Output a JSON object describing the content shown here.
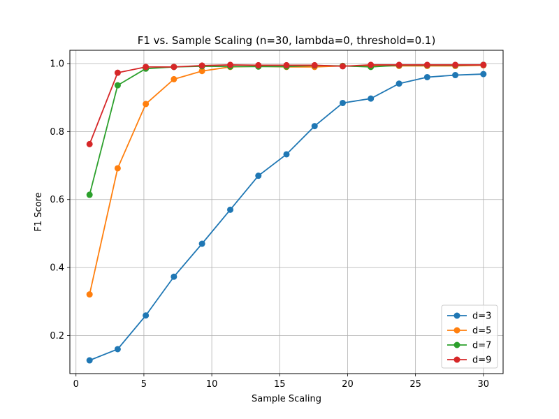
{
  "chart_data": {
    "type": "line",
    "title": "F1 vs. Sample Scaling (n=30, lambda=0, threshold=0.1)",
    "xlabel": "Sample Scaling",
    "ylabel": "F1 Score",
    "xlim": [
      -0.45,
      31.45
    ],
    "ylim": [
      0.088,
      1.039
    ],
    "xticks": [
      0,
      5,
      10,
      15,
      20,
      25,
      30
    ],
    "yticks": [
      0.2,
      0.4,
      0.6,
      0.8,
      1.0
    ],
    "xtick_labels": [
      "0",
      "5",
      "10",
      "15",
      "20",
      "25",
      "30"
    ],
    "ytick_labels": [
      "0.2",
      "0.4",
      "0.6",
      "0.8",
      "1.0"
    ],
    "grid": true,
    "legend_position": "bottom-right",
    "x": [
      1,
      3.07,
      5.14,
      7.21,
      9.28,
      11.36,
      13.43,
      15.5,
      17.57,
      19.64,
      21.71,
      23.79,
      25.86,
      27.93,
      30
    ],
    "series": [
      {
        "name": "d=3",
        "color": "#1f77b4",
        "values": [
          0.127,
          0.16,
          0.259,
          0.373,
          0.47,
          0.57,
          0.67,
          0.733,
          0.816,
          0.884,
          0.897,
          0.941,
          0.96,
          0.966,
          0.969
        ]
      },
      {
        "name": "d=5",
        "color": "#ff7f0e",
        "values": [
          0.321,
          0.692,
          0.881,
          0.954,
          0.978,
          0.99,
          0.992,
          0.99,
          0.99,
          0.993,
          0.993,
          0.993,
          0.993,
          0.993,
          0.995
        ]
      },
      {
        "name": "d=7",
        "color": "#2ca02c",
        "values": [
          0.614,
          0.936,
          0.985,
          0.99,
          0.992,
          0.991,
          0.991,
          0.991,
          0.994,
          0.993,
          0.99,
          0.995,
          0.995,
          0.995,
          0.996
        ]
      },
      {
        "name": "d=9",
        "color": "#d62728",
        "values": [
          0.763,
          0.973,
          0.99,
          0.99,
          0.994,
          0.996,
          0.995,
          0.995,
          0.995,
          0.992,
          0.996,
          0.996,
          0.996,
          0.996,
          0.996
        ]
      }
    ]
  }
}
